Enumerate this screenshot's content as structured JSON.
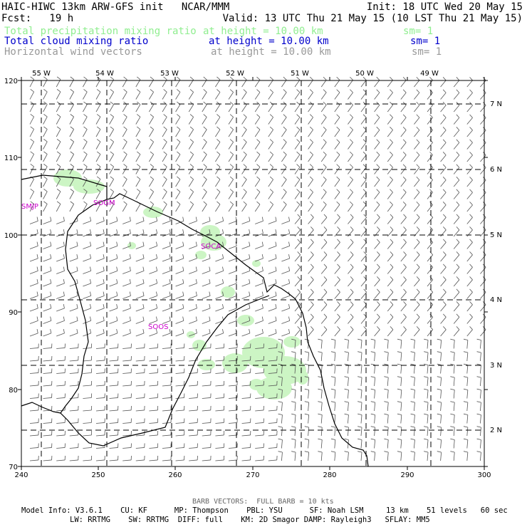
{
  "header": {
    "left1": "HAIC-HIWC 13km ARW-GFS init   NCAR/MMM",
    "right1": "Init: 18 UTC Wed 20 May 15",
    "left2": "Fcst:   19 h",
    "right2": "Valid: 13 UTC Thu 21 May 15 (10 LST Thu 21 May 15)",
    "fields": [
      {
        "name": "Total precipitation mixing ratio",
        "level": "at height = 10.00 km",
        "sm": "sm= 1",
        "color": "#90ee90"
      },
      {
        "name": "Total cloud mixing ratio",
        "level": "at height = 10.00 km",
        "sm": "sm= 1",
        "color": "#0000cc"
      },
      {
        "name": "Horizontal wind vectors",
        "level": "at height = 10.00 km",
        "sm": "sm= 1",
        "color": "#999999"
      }
    ]
  },
  "map": {
    "x_ticks": [
      "240",
      "250",
      "260",
      "270",
      "280",
      "290",
      "300"
    ],
    "y_ticks": [
      "70",
      "80",
      "90",
      "100",
      "110",
      "120"
    ],
    "lon_labels": [
      "55 W",
      "54 W",
      "53 W",
      "52 W",
      "51 W",
      "50 W",
      "49 W"
    ],
    "lat_labels": [
      "7 N",
      "6 N",
      "5 N",
      "4 N",
      "3 N",
      "2 N"
    ],
    "stations": [
      "SMJP",
      "SOGM",
      "SOCA",
      "SOOS"
    ],
    "colors": {
      "coast": "#000000",
      "barb": "#555555",
      "precip": "#ccf5c4",
      "station": "#cc00cc",
      "grid": "#000000"
    }
  },
  "footer": {
    "barb_note": "BARB VECTORS:  FULL BARB = 10 kts",
    "model_line1": "Model Info: V3.6.1    CU: KF      MP: Thompson    PBL: YSU      SF: Noah LSM     13 km    51 levels   60 sec",
    "model_line2": "LW: RRTMG    SW: RRTMG  DIFF: full    KM: 2D Smagor DAMP: Rayleigh3   SFLAY: MM5"
  }
}
